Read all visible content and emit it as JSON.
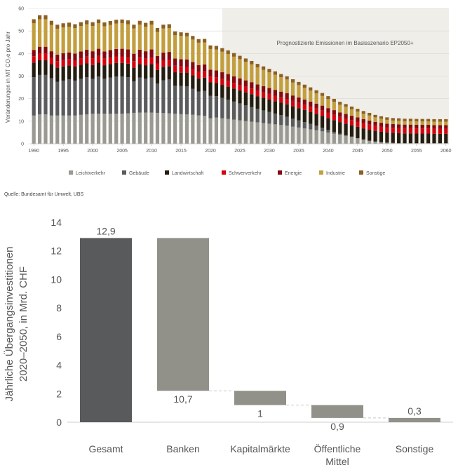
{
  "chart_data": [
    {
      "type": "bar",
      "stacked": true,
      "ylabel": "Veränderungen in MT CO₂e pro Jahr",
      "ylim": [
        0,
        60
      ],
      "yticks": [
        0,
        10,
        20,
        30,
        40,
        50,
        60
      ],
      "xticks": [
        "1990",
        "1995",
        "2000",
        "2005",
        "2010",
        "2015",
        "2020",
        "2025",
        "2030",
        "2035",
        "2040",
        "2045",
        "2050",
        "2055",
        "2060"
      ],
      "grid": true,
      "legend_position": "bottom",
      "annotation": "Prognostizierte Emissionen im Basisszenario EP2050+",
      "forecast_from_year": 2023,
      "years": [
        1990,
        1991,
        1992,
        1993,
        1994,
        1995,
        1996,
        1997,
        1998,
        1999,
        2000,
        2001,
        2002,
        2003,
        2004,
        2005,
        2006,
        2007,
        2008,
        2009,
        2010,
        2011,
        2012,
        2013,
        2014,
        2015,
        2016,
        2017,
        2018,
        2019,
        2020,
        2021,
        2022,
        2023,
        2024,
        2025,
        2026,
        2027,
        2028,
        2029,
        2030,
        2031,
        2032,
        2033,
        2034,
        2035,
        2036,
        2037,
        2038,
        2039,
        2040,
        2041,
        2042,
        2043,
        2044,
        2045,
        2046,
        2047,
        2048,
        2049,
        2050,
        2051,
        2052,
        2053,
        2054,
        2055,
        2056,
        2057,
        2058,
        2059,
        2060
      ],
      "series": [
        {
          "name": "Leichtverkehr",
          "color": "#9a9a93",
          "values": [
            12.5,
            13.0,
            13.0,
            12.5,
            12.5,
            12.5,
            12.5,
            12.5,
            12.8,
            13.0,
            13.3,
            13.3,
            13.3,
            13.3,
            13.3,
            13.3,
            13.5,
            13.7,
            13.8,
            13.8,
            13.8,
            13.7,
            13.6,
            13.5,
            13.3,
            13.1,
            13.0,
            12.9,
            12.6,
            12.4,
            11.3,
            11.6,
            11.3,
            11.0,
            10.7,
            10.4,
            10.1,
            9.8,
            9.5,
            9.2,
            8.9,
            8.6,
            8.3,
            8.0,
            7.6,
            7.2,
            6.8,
            6.4,
            6.0,
            5.5,
            5.0,
            4.5,
            4.0,
            3.5,
            3.0,
            2.4,
            1.8,
            1.3,
            0.9,
            0.6,
            0.4,
            0.3,
            0.2,
            0.2,
            0.2,
            0.2,
            0.2,
            0.2,
            0.2,
            0.2,
            0.2
          ]
        },
        {
          "name": "Gebäude",
          "color": "#5a5b5d",
          "values": [
            17.0,
            17.5,
            17.5,
            16.5,
            15.0,
            15.5,
            16.0,
            15.5,
            16.0,
            16.5,
            15.5,
            16.5,
            15.5,
            16.0,
            16.5,
            16.5,
            16.0,
            14.0,
            15.5,
            15.0,
            15.5,
            13.0,
            14.5,
            15.0,
            12.5,
            12.5,
            12.5,
            11.5,
            10.5,
            11.0,
            10.0,
            9.5,
            9.0,
            8.5,
            8.0,
            7.5,
            7.0,
            6.5,
            6.0,
            5.6,
            5.2,
            4.8,
            4.4,
            4.0,
            3.6,
            3.2,
            2.8,
            2.4,
            2.0,
            1.6,
            1.2,
            0.8,
            0.5,
            0.3,
            0.2,
            0.1,
            0.1,
            0.1,
            0.1,
            0.1,
            0.1,
            0.1,
            0.1,
            0.1,
            0.1,
            0.1,
            0.1,
            0.1,
            0.1,
            0.1,
            0.1
          ]
        },
        {
          "name": "Landwirtschaft",
          "color": "#241d11",
          "values": [
            6.5,
            6.5,
            6.5,
            6.3,
            6.3,
            6.3,
            6.2,
            6.2,
            6.2,
            6.1,
            6.1,
            6.1,
            6.0,
            6.0,
            6.0,
            6.0,
            6.0,
            6.0,
            6.0,
            6.0,
            6.0,
            6.0,
            6.0,
            5.9,
            5.9,
            5.9,
            5.9,
            5.9,
            5.9,
            5.9,
            5.9,
            5.8,
            5.8,
            5.8,
            5.8,
            5.7,
            5.7,
            5.7,
            5.6,
            5.6,
            5.6,
            5.5,
            5.5,
            5.5,
            5.4,
            5.4,
            5.4,
            5.3,
            5.3,
            5.3,
            5.2,
            5.2,
            5.1,
            5.1,
            5.0,
            5.0,
            4.9,
            4.8,
            4.7,
            4.6,
            4.5,
            4.4,
            4.4,
            4.3,
            4.3,
            4.2,
            4.2,
            4.2,
            4.1,
            4.1,
            4.1
          ]
        },
        {
          "name": "Schwerverkehr",
          "color": "#d6000d",
          "values": [
            2.8,
            3.0,
            3.0,
            2.8,
            2.8,
            2.8,
            2.8,
            2.8,
            2.9,
            3.0,
            3.0,
            3.0,
            2.9,
            2.9,
            2.9,
            2.9,
            2.9,
            2.9,
            3.0,
            2.9,
            2.9,
            2.9,
            2.9,
            2.9,
            2.9,
            2.8,
            2.8,
            2.8,
            2.8,
            2.8,
            2.6,
            2.6,
            2.6,
            2.6,
            2.5,
            2.5,
            2.5,
            2.5,
            2.5,
            2.4,
            2.4,
            2.4,
            2.4,
            2.4,
            2.4,
            2.3,
            2.3,
            2.3,
            2.3,
            2.3,
            2.3,
            2.3,
            2.3,
            2.3,
            2.3,
            2.3,
            2.3,
            2.3,
            2.3,
            2.3,
            2.3,
            2.3,
            2.3,
            2.3,
            2.3,
            2.3,
            2.3,
            2.3,
            2.3,
            2.3,
            2.3
          ]
        },
        {
          "name": "Energie",
          "color": "#86090f",
          "values": [
            2.8,
            3.0,
            3.0,
            2.9,
            2.9,
            3.0,
            3.0,
            3.0,
            3.0,
            3.1,
            3.1,
            3.2,
            3.2,
            3.3,
            3.3,
            3.4,
            3.4,
            3.3,
            3.4,
            3.3,
            3.6,
            3.3,
            3.4,
            3.4,
            3.2,
            3.2,
            3.2,
            3.1,
            3.1,
            3.1,
            3.0,
            3.0,
            3.0,
            3.0,
            2.9,
            2.9,
            2.8,
            2.8,
            2.7,
            2.7,
            2.6,
            2.6,
            2.5,
            2.5,
            2.4,
            2.4,
            2.3,
            2.3,
            2.2,
            2.2,
            2.1,
            2.1,
            2.0,
            2.0,
            1.9,
            1.9,
            1.8,
            1.8,
            1.7,
            1.7,
            1.6,
            1.6,
            1.6,
            1.6,
            1.6,
            1.6,
            1.6,
            1.6,
            1.6,
            1.6,
            1.6
          ]
        },
        {
          "name": "Industrie",
          "color": "#c39e3d",
          "values": [
            11.8,
            12.2,
            12.2,
            11.7,
            11.5,
            11.5,
            11.4,
            11.3,
            11.3,
            11.3,
            11.2,
            11.3,
            11.2,
            11.2,
            11.3,
            11.3,
            11.2,
            11.2,
            11.1,
            10.9,
            11.0,
            10.7,
            10.7,
            10.6,
            10.3,
            10.3,
            10.2,
            10.0,
            9.9,
            9.7,
            9.2,
            9.3,
            9.1,
            8.9,
            8.7,
            8.5,
            8.2,
            7.9,
            7.6,
            7.3,
            7.0,
            6.7,
            6.4,
            6.1,
            5.8,
            5.5,
            5.2,
            4.9,
            4.6,
            4.3,
            4.0,
            3.7,
            3.4,
            3.2,
            2.9,
            2.6,
            2.4,
            2.2,
            2.0,
            1.8,
            1.7,
            1.6,
            1.6,
            1.5,
            1.5,
            1.5,
            1.5,
            1.5,
            1.5,
            1.5,
            1.5
          ]
        },
        {
          "name": "Sonstige",
          "color": "#8c5f22",
          "values": [
            1.8,
            1.8,
            1.8,
            1.8,
            1.8,
            1.8,
            1.8,
            1.7,
            1.7,
            1.7,
            1.7,
            1.7,
            1.7,
            1.7,
            1.7,
            1.7,
            1.7,
            1.7,
            1.7,
            1.7,
            1.7,
            1.7,
            1.7,
            1.7,
            1.7,
            1.6,
            1.6,
            1.6,
            1.6,
            1.6,
            1.6,
            1.6,
            1.6,
            1.6,
            1.6,
            1.5,
            1.5,
            1.5,
            1.5,
            1.5,
            1.5,
            1.5,
            1.4,
            1.4,
            1.4,
            1.4,
            1.4,
            1.4,
            1.3,
            1.3,
            1.3,
            1.3,
            1.3,
            1.2,
            1.2,
            1.2,
            1.2,
            1.2,
            1.1,
            1.1,
            1.1,
            1.1,
            1.1,
            1.1,
            1.1,
            1.1,
            1.1,
            1.1,
            1.1,
            1.1,
            1.1
          ]
        }
      ]
    },
    {
      "type": "waterfall",
      "ylabel_lines": [
        "Jährliche Übergangsinvestitionen",
        "2020–2050, in Mrd. CHF"
      ],
      "ylim": [
        0,
        14
      ],
      "yticks": [
        0,
        2,
        4,
        6,
        8,
        10,
        12,
        14
      ],
      "categories": [
        [
          "Gesamt"
        ],
        [
          "Banken"
        ],
        [
          "Kapitalmärkte"
        ],
        [
          "Öffentliche",
          "Mittel"
        ],
        [
          "Sonstige"
        ]
      ],
      "bars": [
        {
          "bottom": 0,
          "top": 12.9,
          "label": "12,9",
          "label_position": "above",
          "color": "#595a5b"
        },
        {
          "bottom": 2.2,
          "top": 12.9,
          "label": "10,7",
          "label_position": "below",
          "color": "#91918a"
        },
        {
          "bottom": 1.2,
          "top": 2.2,
          "label": "1",
          "label_position": "below",
          "color": "#91918a"
        },
        {
          "bottom": 0.3,
          "top": 1.2,
          "label": "0,9",
          "label_position": "below",
          "color": "#91918a"
        },
        {
          "bottom": 0,
          "top": 0.3,
          "label": "0,3",
          "label_position": "above",
          "color": "#91918a"
        }
      ]
    }
  ],
  "source_note": "Quelle: Bundesamt für Umwelt, UBS"
}
